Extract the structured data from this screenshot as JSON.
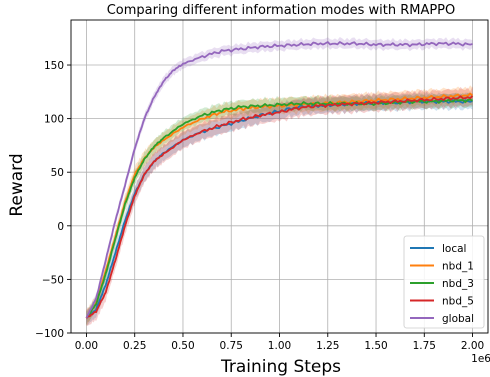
{
  "chart_data": {
    "type": "line",
    "title": "Comparing different information modes with RMAPPO",
    "xlabel": "Training Steps",
    "ylabel": "Reward",
    "x_offset_label": "1e6",
    "xlim": [
      -0.08,
      2.08
    ],
    "ylim": [
      -100,
      192
    ],
    "xticks": [
      0.0,
      0.25,
      0.5,
      0.75,
      1.0,
      1.25,
      1.5,
      1.75,
      2.0
    ],
    "xtick_labels": [
      "0.00",
      "0.25",
      "0.50",
      "0.75",
      "1.00",
      "1.25",
      "1.50",
      "1.75",
      "2.00"
    ],
    "yticks": [
      -100,
      -50,
      0,
      50,
      100,
      150
    ],
    "ytick_labels": [
      "−100",
      "−50",
      "0",
      "50",
      "100",
      "150"
    ],
    "grid": true,
    "legend_position": "bottom-right",
    "series": [
      {
        "name": "local",
        "color": "#1f77b4",
        "x": [
          0.0,
          0.05,
          0.1,
          0.15,
          0.2,
          0.25,
          0.3,
          0.35,
          0.4,
          0.5,
          0.6,
          0.7,
          0.8,
          0.9,
          1.0,
          1.1,
          1.2,
          1.3,
          1.4,
          1.5,
          1.6,
          1.7,
          1.8,
          1.9,
          2.0
        ],
        "y": [
          -86,
          -78,
          -55,
          -25,
          5,
          30,
          48,
          60,
          68,
          80,
          88,
          93,
          98,
          103,
          107,
          111,
          112,
          113,
          114,
          115,
          115,
          116,
          116,
          116,
          116
        ],
        "band": 8
      },
      {
        "name": "nbd_1",
        "color": "#ff7f0e",
        "x": [
          0.0,
          0.05,
          0.1,
          0.15,
          0.2,
          0.25,
          0.3,
          0.35,
          0.4,
          0.5,
          0.6,
          0.7,
          0.8,
          0.9,
          1.0,
          1.1,
          1.2,
          1.3,
          1.4,
          1.5,
          1.6,
          1.7,
          1.8,
          1.9,
          2.0
        ],
        "y": [
          -86,
          -72,
          -42,
          -10,
          22,
          48,
          63,
          73,
          80,
          92,
          100,
          106,
          109,
          111,
          112,
          113,
          114,
          115,
          116,
          117,
          118,
          119,
          120,
          121,
          122
        ],
        "band": 8
      },
      {
        "name": "nbd_3",
        "color": "#2ca02c",
        "x": [
          0.0,
          0.05,
          0.1,
          0.15,
          0.2,
          0.25,
          0.3,
          0.35,
          0.4,
          0.5,
          0.6,
          0.7,
          0.8,
          0.9,
          1.0,
          1.1,
          1.2,
          1.3,
          1.4,
          1.5,
          1.6,
          1.7,
          1.8,
          1.9,
          2.0
        ],
        "y": [
          -86,
          -73,
          -45,
          -12,
          20,
          45,
          62,
          74,
          82,
          95,
          103,
          108,
          111,
          112,
          113,
          114,
          114,
          114,
          114,
          114,
          115,
          116,
          116,
          117,
          117
        ],
        "band": 7
      },
      {
        "name": "nbd_5",
        "color": "#d62728",
        "x": [
          0.0,
          0.05,
          0.1,
          0.15,
          0.2,
          0.25,
          0.3,
          0.35,
          0.4,
          0.5,
          0.6,
          0.7,
          0.8,
          0.9,
          1.0,
          1.1,
          1.2,
          1.3,
          1.4,
          1.5,
          1.6,
          1.7,
          1.8,
          1.9,
          2.0
        ],
        "y": [
          -86,
          -80,
          -62,
          -32,
          0,
          28,
          48,
          60,
          67,
          80,
          88,
          94,
          99,
          103,
          106,
          110,
          112,
          113,
          114,
          115,
          116,
          117,
          118,
          119,
          120
        ],
        "band": 9
      },
      {
        "name": "global",
        "color": "#9467bd",
        "x": [
          0.0,
          0.05,
          0.1,
          0.15,
          0.2,
          0.25,
          0.3,
          0.35,
          0.4,
          0.45,
          0.5,
          0.6,
          0.7,
          0.8,
          0.9,
          1.0,
          1.1,
          1.2,
          1.3,
          1.4,
          1.5,
          1.6,
          1.7,
          1.8,
          1.9,
          2.0
        ],
        "y": [
          -86,
          -68,
          -32,
          5,
          38,
          72,
          100,
          120,
          135,
          145,
          151,
          158,
          163,
          165,
          167,
          168,
          169,
          170,
          170,
          170,
          169,
          169,
          169,
          170,
          170,
          169
        ],
        "band": 5
      }
    ]
  }
}
